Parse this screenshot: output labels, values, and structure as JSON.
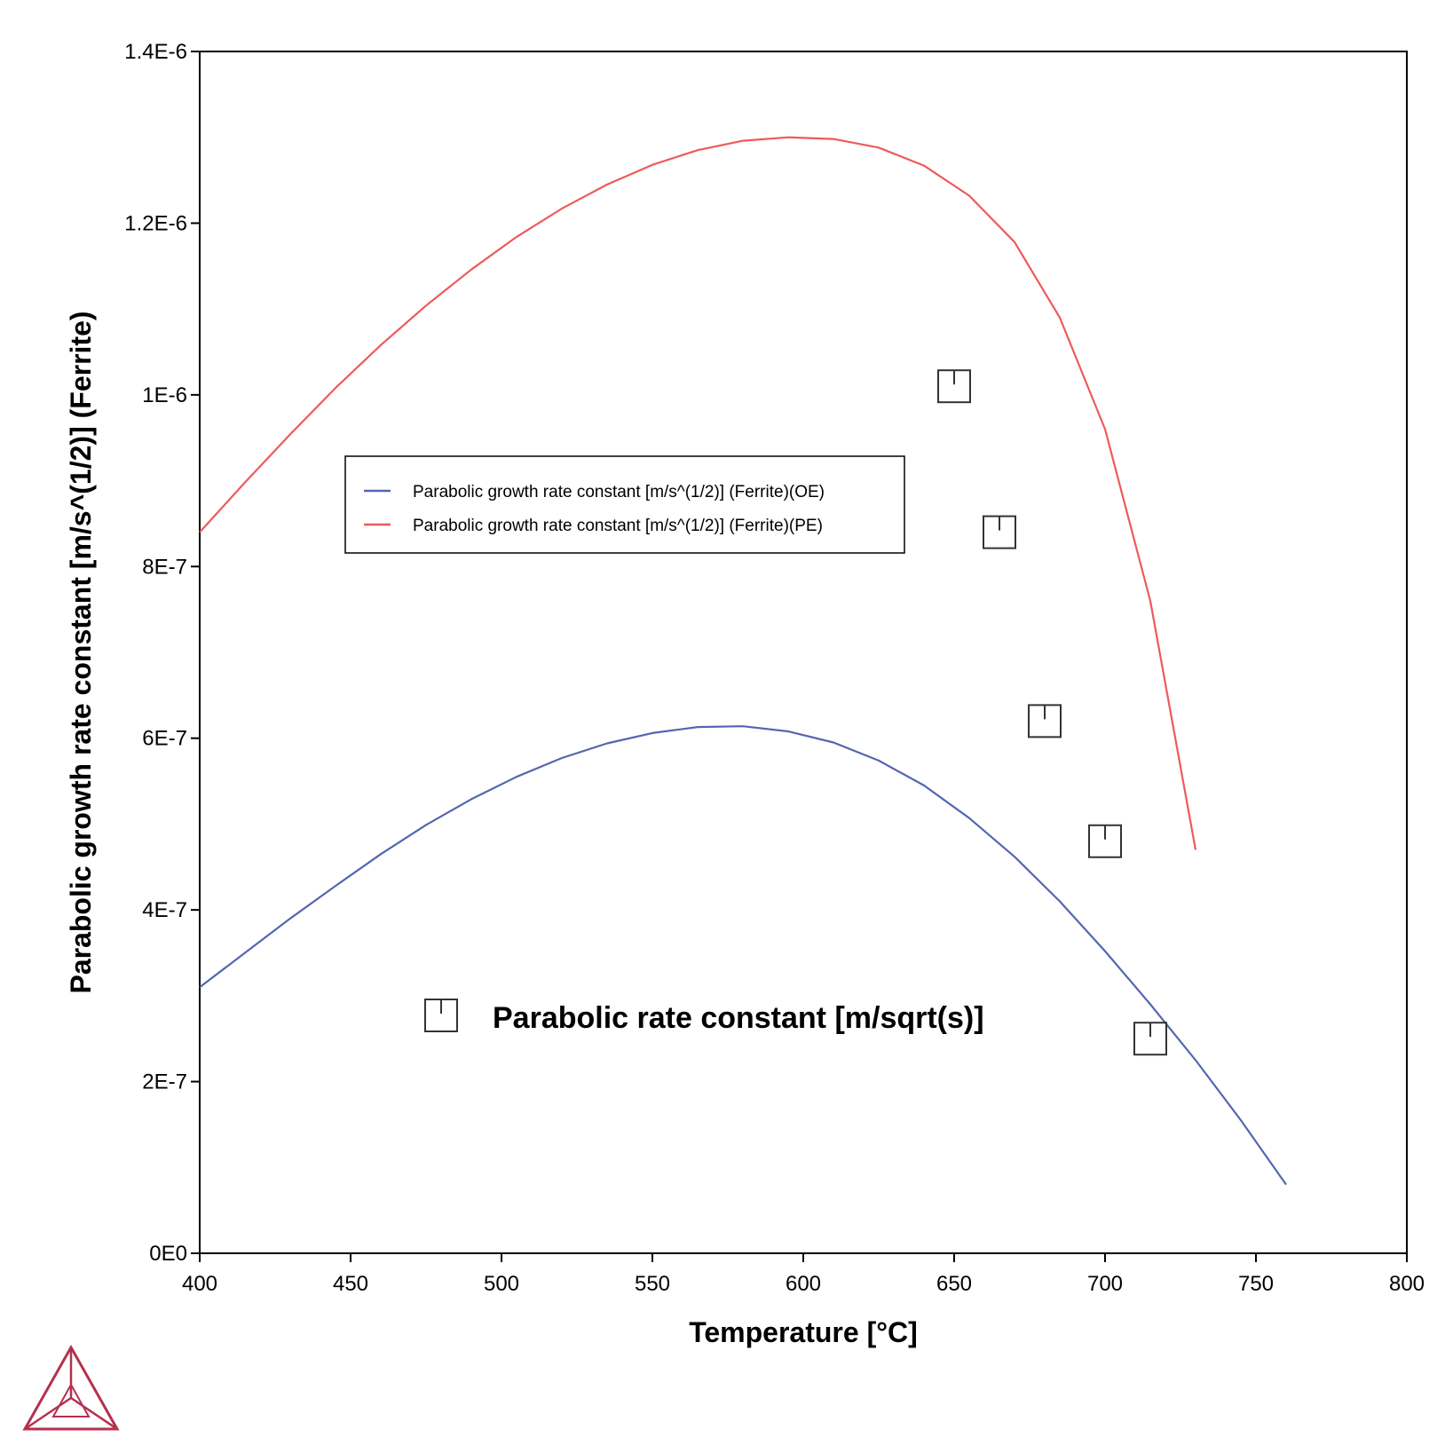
{
  "chart_data": {
    "type": "line",
    "xlabel": "Temperature [°C]",
    "ylabel": "Parabolic growth rate constant [m/s^(1/2)] (Ferrite)",
    "xlim": [
      400,
      800
    ],
    "ylim": [
      0,
      1.4e-06
    ],
    "x_ticks": [
      400,
      450,
      500,
      550,
      600,
      650,
      700,
      750,
      800
    ],
    "x_tick_labels": [
      "400",
      "450",
      "500",
      "550",
      "600",
      "650",
      "700",
      "750",
      "800"
    ],
    "y_ticks": [
      0,
      2e-07,
      4e-07,
      6e-07,
      8e-07,
      1e-06,
      1.2e-06,
      1.4e-06
    ],
    "y_tick_labels": [
      "0E0",
      "2E-7",
      "4E-7",
      "6E-7",
      "8E-7",
      "1E-6",
      "1.2E-6",
      "1.4E-6"
    ],
    "grid": false,
    "legend_position": "upper-left",
    "series": [
      {
        "name": "Parabolic growth rate constant [m/s^(1/2)] (Ferrite)(OE)",
        "color": "#5566b0",
        "x": [
          400,
          415,
          430,
          445,
          460,
          475,
          490,
          505,
          520,
          535,
          550,
          565,
          580,
          595,
          610,
          625,
          640,
          655,
          670,
          685,
          700,
          715,
          730,
          745,
          760
        ],
        "y": [
          3.1e-07,
          3.5e-07,
          3.9e-07,
          4.28e-07,
          4.65e-07,
          4.99e-07,
          5.29e-07,
          5.55e-07,
          5.77e-07,
          5.94e-07,
          6.06e-07,
          6.13e-07,
          6.14e-07,
          6.08e-07,
          5.95e-07,
          5.74e-07,
          5.45e-07,
          5.07e-07,
          4.62e-07,
          4.1e-07,
          3.52e-07,
          2.9e-07,
          2.25e-07,
          1.55e-07,
          8e-08
        ]
      },
      {
        "name": "Parabolic growth rate constant [m/s^(1/2)] (Ferrite)(PE)",
        "color": "#ee5a5a",
        "x": [
          400,
          415,
          430,
          445,
          460,
          475,
          490,
          505,
          520,
          535,
          550,
          565,
          580,
          595,
          610,
          625,
          640,
          655,
          670,
          685,
          700,
          715,
          730
        ],
        "y": [
          8.4e-07,
          8.98e-07,
          9.54e-07,
          1.008e-06,
          1.058e-06,
          1.104e-06,
          1.146e-06,
          1.184e-06,
          1.217e-06,
          1.245e-06,
          1.268e-06,
          1.285e-06,
          1.296e-06,
          1.3e-06,
          1.298e-06,
          1.288e-06,
          1.267e-06,
          1.232e-06,
          1.178e-06,
          1.09e-06,
          9.6e-07,
          7.6e-07,
          4.7e-07
        ]
      }
    ],
    "markers": {
      "name": "Parabolic rate constant [m/sqrt(s)]",
      "color": "#333333",
      "x": [
        650,
        665,
        680,
        700,
        715
      ],
      "y": [
        1.01e-06,
        8.4e-07,
        6.2e-07,
        4.8e-07,
        2.5e-07
      ]
    }
  }
}
